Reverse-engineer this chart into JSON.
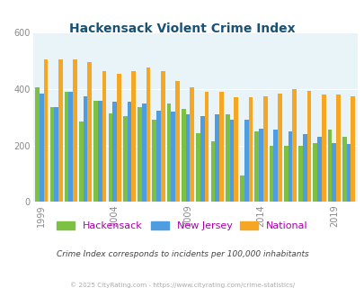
{
  "title": "Hackensack Violent Crime Index",
  "title_color": "#1a5276",
  "years": [
    1999,
    2000,
    2001,
    2002,
    2003,
    2004,
    2005,
    2006,
    2007,
    2008,
    2009,
    2010,
    2011,
    2012,
    2013,
    2014,
    2015,
    2016,
    2017,
    2018,
    2019,
    2020
  ],
  "hackensack": [
    405,
    335,
    390,
    285,
    360,
    315,
    305,
    335,
    290,
    350,
    330,
    245,
    215,
    310,
    95,
    250,
    200,
    200,
    200,
    210,
    255,
    230
  ],
  "new_jersey": [
    385,
    335,
    390,
    375,
    360,
    355,
    355,
    350,
    325,
    320,
    310,
    305,
    310,
    290,
    290,
    260,
    255,
    250,
    240,
    230,
    210,
    205
  ],
  "national": [
    505,
    505,
    505,
    495,
    465,
    455,
    465,
    475,
    465,
    430,
    405,
    390,
    390,
    370,
    370,
    375,
    385,
    400,
    395,
    380,
    380,
    375
  ],
  "hackensack_color": "#7dc142",
  "nj_color": "#4d9de0",
  "national_color": "#f5a623",
  "bg_color": "#e8f4f8",
  "ylim": [
    0,
    600
  ],
  "yticks": [
    0,
    200,
    400,
    600
  ],
  "xlabel_years": [
    1999,
    2004,
    2009,
    2014,
    2019
  ],
  "subtitle": "Crime Index corresponds to incidents per 100,000 inhabitants",
  "subtitle_color": "#444444",
  "footer": "© 2025 CityRating.com - https://www.cityrating.com/crime-statistics/",
  "footer_color": "#aaaaaa",
  "legend_labels": [
    "Hackensack",
    "New Jersey",
    "National"
  ],
  "legend_label_color": "#aa00aa"
}
